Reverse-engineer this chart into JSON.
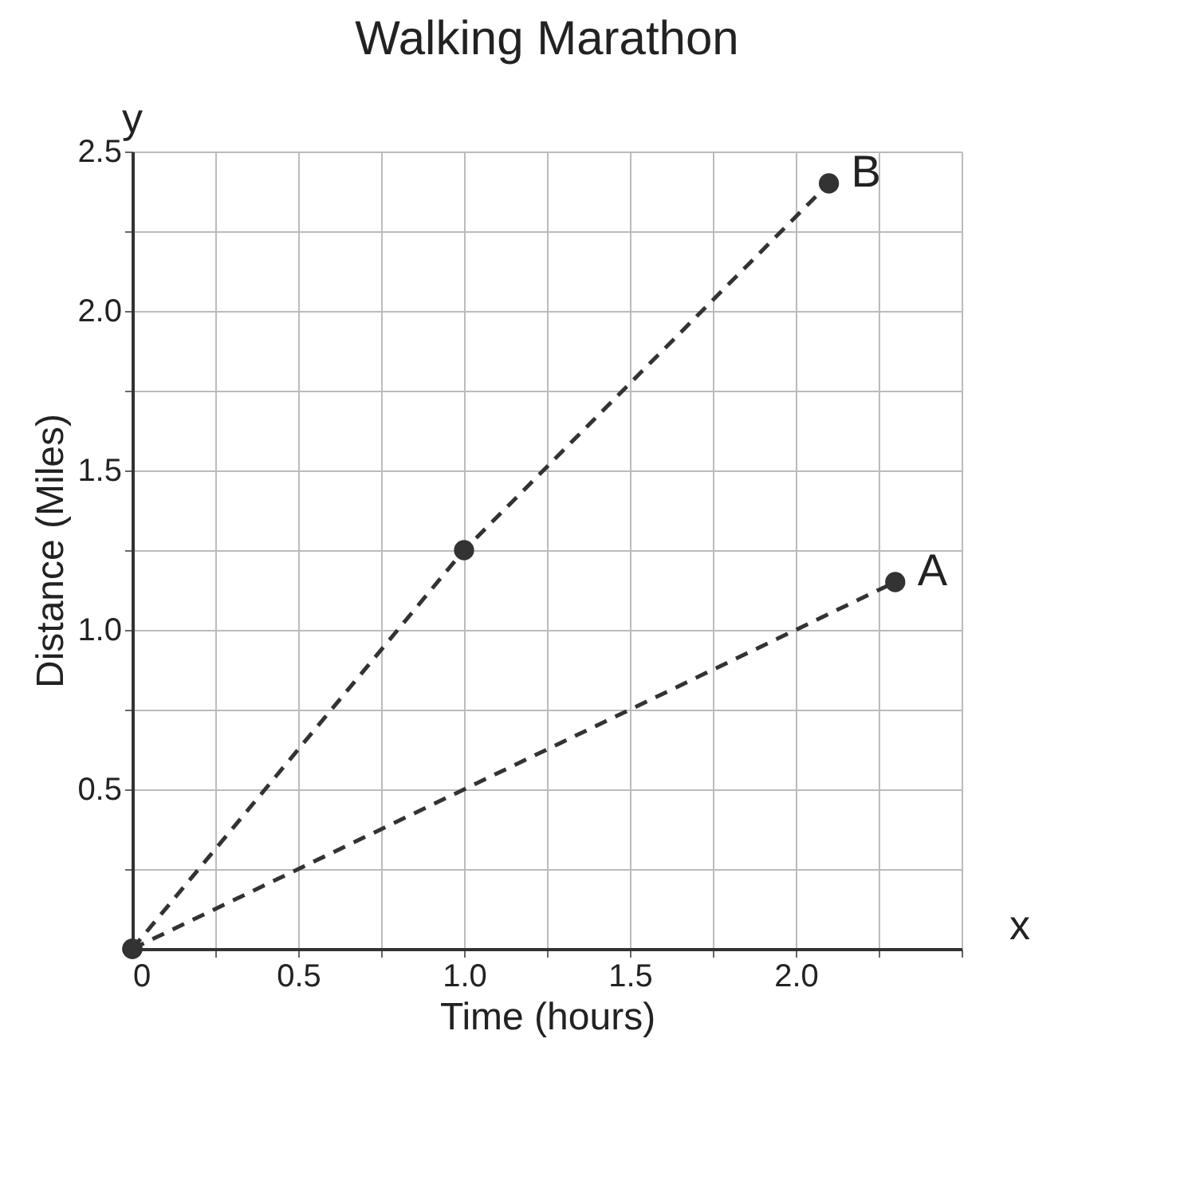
{
  "chart_data": {
    "type": "line",
    "title": "Walking Marathon",
    "xlabel": "Time (hours)",
    "ylabel": "Distance (Miles)",
    "annotations": [
      "y",
      "x"
    ],
    "xlim": [
      0,
      2.5
    ],
    "ylim": [
      0,
      2.5
    ],
    "xticks": [
      0,
      {
        "value": 0.25,
        "label": null
      },
      {
        "value": 0.5,
        "label": "0.5"
      },
      {
        "value": 0.75,
        "label": null
      },
      {
        "value": 1,
        "label": "1.0"
      },
      {
        "value": 1.25,
        "label": null
      },
      {
        "value": 1.5,
        "label": "1.5"
      },
      {
        "value": 1.75,
        "label": null
      },
      {
        "value": 2,
        "label": "2.0"
      },
      {
        "value": 2.25,
        "label": null
      },
      {
        "value": 2.5,
        "label": null
      }
    ],
    "yticks": [
      {
        "value": 0,
        "label": null
      },
      {
        "value": 0.25,
        "label": null
      },
      0.5,
      {
        "value": 0.75,
        "label": null
      },
      {
        "value": 1,
        "label": "1.0"
      },
      {
        "value": 1.25,
        "label": null
      },
      1.5,
      {
        "value": 1.75,
        "label": null
      },
      {
        "value": 2,
        "label": "2.0"
      },
      {
        "value": 2.25,
        "label": null
      },
      2.5
    ],
    "grid": true,
    "marker": "circle",
    "line_style": "dashed",
    "series": [
      {
        "name": "B",
        "color": "#333333",
        "x": [
          0,
          1,
          2.1
        ],
        "values": [
          0,
          1.25,
          2.4
        ]
      },
      {
        "name": "A",
        "color": "#333333",
        "x": [
          0,
          2.3
        ],
        "values": [
          0,
          1.15
        ]
      }
    ]
  }
}
